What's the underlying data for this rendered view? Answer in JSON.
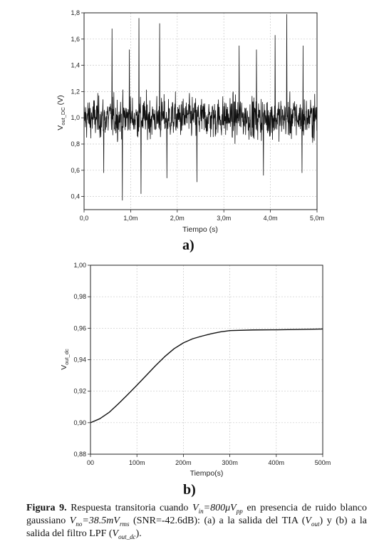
{
  "panel_a": {
    "label": "a)",
    "y_label_main": "V",
    "y_label_sub": "out_DC",
    "y_label_unit": "(V)"
  },
  "panel_b": {
    "label": "b)",
    "y_label_main": "V",
    "y_label_sub": "out_dc"
  },
  "caption": {
    "fig": "Figura 9.",
    "t1": " Respuesta transitoria cuando ",
    "vin": "V",
    "vin_sub": "in",
    "t2": "=800",
    "mu": "μ",
    "vpp": "V",
    "vpp_sub": "pp",
    "t3": " en presencia de ruido blanco gaussiano ",
    "vno": "V",
    "vno_sub": "no",
    "t4": "=38.5",
    "m": "m",
    "vrms": "V",
    "vrms_sub": "rms",
    "t5": " (SNR=-42.6dB): (a) a la salida del TIA (",
    "vout": "V",
    "vout_sub": "out",
    "t6": ") y (b) a la salida del filtro LPF (",
    "voutdc": "V",
    "voutdc_sub": "out_dc",
    "t7": ")."
  },
  "chart_data": [
    {
      "type": "line",
      "xlabel": "Tiempo (s)",
      "ylabel": "Vout_DC (V)",
      "xlim": [
        0,
        0.005
      ],
      "ylim": [
        0.3,
        1.8
      ],
      "x_ticks": [
        0,
        0.001,
        0.002,
        0.003,
        0.004,
        0.005
      ],
      "x_tick_labels": [
        "0,0",
        "1,0m",
        "2,0m",
        "3,0m",
        "4,0m",
        "5,0m"
      ],
      "y_ticks": [
        0.4,
        0.6,
        0.8,
        1.0,
        1.2,
        1.4,
        1.6,
        1.8
      ],
      "y_tick_labels": [
        "0,4",
        "0,6",
        "0,8",
        "1,0",
        "1,2",
        "1,4",
        "1,6",
        "1,8"
      ],
      "grid": true,
      "series": [
        {
          "description": "noisy transient around 1.0 V",
          "mean": 1.0,
          "x_start": 0,
          "x_end": 0.005,
          "peaks": [
            {
              "x": 0.0006,
              "y": 1.68
            },
            {
              "x": 0.00097,
              "y": 1.52
            },
            {
              "x": 0.00118,
              "y": 1.76
            },
            {
              "x": 0.00162,
              "y": 1.72
            },
            {
              "x": 0.00242,
              "y": 1.76
            },
            {
              "x": 0.00333,
              "y": 1.55
            },
            {
              "x": 0.0037,
              "y": 1.52
            },
            {
              "x": 0.0041,
              "y": 1.63
            },
            {
              "x": 0.00435,
              "y": 1.79
            },
            {
              "x": 0.0047,
              "y": 1.55
            }
          ],
          "troughs": [
            {
              "x": 0.00042,
              "y": 0.58
            },
            {
              "x": 0.00082,
              "y": 0.37
            },
            {
              "x": 0.00122,
              "y": 0.42
            },
            {
              "x": 0.00178,
              "y": 0.54
            },
            {
              "x": 0.00242,
              "y": 0.51
            },
            {
              "x": 0.00385,
              "y": 0.56
            },
            {
              "x": 0.00468,
              "y": 0.58
            }
          ]
        }
      ]
    },
    {
      "type": "line",
      "xlabel": "Tiempo(s)",
      "ylabel": "Vout_dc",
      "xlim": [
        0,
        0.0005
      ],
      "ylim": [
        0.88,
        1.0
      ],
      "x_ticks": [
        0,
        0.0001,
        0.0002,
        0.0003,
        0.0004,
        0.0005
      ],
      "x_tick_labels": [
        "00",
        "100m",
        "200m",
        "300m",
        "400m",
        "500m"
      ],
      "y_ticks": [
        0.88,
        0.9,
        0.92,
        0.94,
        0.96,
        0.98,
        1.0
      ],
      "y_tick_labels": [
        "0,88",
        "0,90",
        "0,92",
        "0,94",
        "0,96",
        "0,98",
        "1,00"
      ],
      "grid": true,
      "series": [
        {
          "x": [
            0,
            2e-05,
            4e-05,
            6e-05,
            8e-05,
            0.0001,
            0.00012,
            0.00014,
            0.00016,
            0.00018,
            0.0002,
            0.00022,
            0.00024,
            0.00026,
            0.00028,
            0.0003,
            0.00035,
            0.0004,
            0.00045,
            0.0005
          ],
          "y": [
            0.9,
            0.9025,
            0.9065,
            0.912,
            0.9178,
            0.9238,
            0.93,
            0.9362,
            0.942,
            0.947,
            0.9507,
            0.9533,
            0.955,
            0.9565,
            0.9577,
            0.9585,
            0.9589,
            0.959,
            0.9592,
            0.9595
          ]
        }
      ]
    }
  ]
}
